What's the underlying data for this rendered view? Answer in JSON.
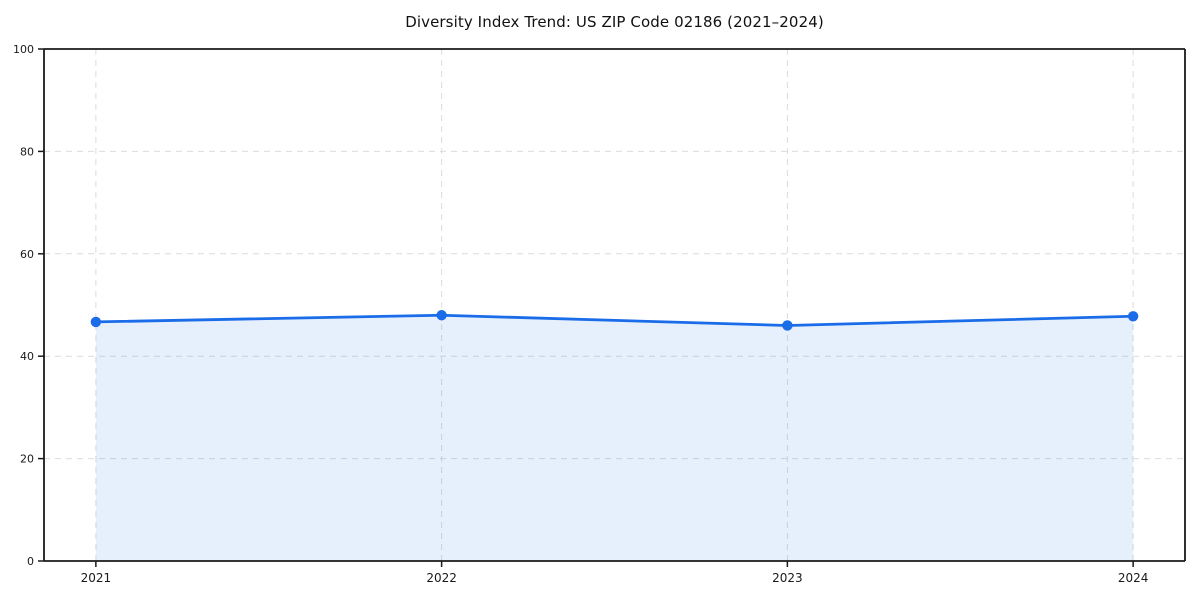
{
  "page": {
    "background": "#ffffff"
  },
  "chart_data": {
    "type": "area",
    "title": "Diversity Index Trend: US ZIP Code 02186 (2021–2024)",
    "series_name": "Diversity Index",
    "categories": [
      "2021",
      "2022",
      "2023",
      "2024"
    ],
    "x": [
      2021,
      2022,
      2023,
      2024
    ],
    "values": [
      46.7,
      48.0,
      46.0,
      47.8
    ],
    "xlabel": "",
    "ylabel": "",
    "ylim": [
      0,
      100
    ],
    "yticks": [
      0,
      20,
      40,
      60,
      80,
      100
    ],
    "grid": true,
    "grid_style": "dashed",
    "legend_position": "none",
    "marker": "circle",
    "colors": {
      "line": "#1a6ce8",
      "marker": "#1a6ce8",
      "fill": "rgba(26,108,232,0.11)",
      "grid": "#dcdcdc",
      "spine": "#1a1a1a",
      "tick": "#1a1a1a",
      "tick_label": "#1a1a1a",
      "title": "#111111",
      "background": "#ffffff"
    }
  }
}
